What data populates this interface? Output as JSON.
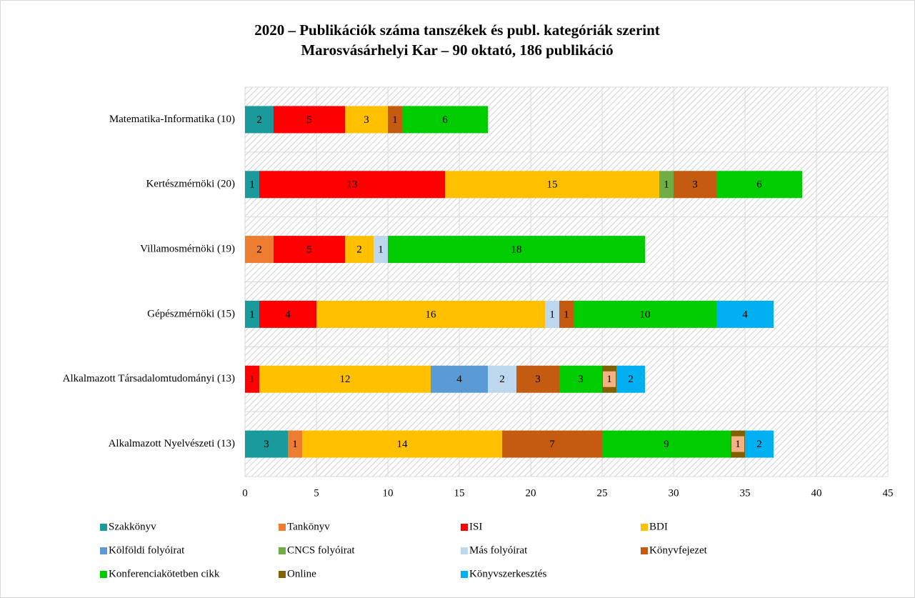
{
  "chart_data": {
    "type": "stacked_barh",
    "title": "2020 – Publikációk száma tanszékek és publ. kategóriák szerint",
    "subtitle": "Marosvásárhelyi Kar – 90 oktató, 186 publikáció",
    "categories": [
      "Matematika-Informatika (10)",
      "Kertészmérnöki (20)",
      "Villamosmérnöki (19)",
      "Gépészmérnöki (15)",
      "Alkalmazott Társadalomtudományi (13)",
      "Alkalmazott Nyelvészeti (13)"
    ],
    "series": [
      {
        "name": "Szakkönyv",
        "color": "#1a9a9a",
        "values": [
          2,
          1,
          null,
          1,
          null,
          3
        ]
      },
      {
        "name": "Tankönyv",
        "color": "#ed7d31",
        "values": [
          null,
          null,
          2,
          null,
          null,
          1
        ]
      },
      {
        "name": "ISI",
        "color": "#ff0000",
        "values": [
          5,
          13,
          5,
          4,
          1,
          null
        ]
      },
      {
        "name": "BDI",
        "color": "#ffc000",
        "values": [
          3,
          15,
          2,
          16,
          12,
          14
        ]
      },
      {
        "name": "Kölföldi folyóirat",
        "color": "#5b9bd5",
        "values": [
          null,
          null,
          null,
          null,
          4,
          null
        ]
      },
      {
        "name": "CNCS folyóirat",
        "color": "#70ad47",
        "values": [
          null,
          1,
          null,
          null,
          null,
          null
        ]
      },
      {
        "name": "Más folyóirat",
        "color": "#bdd7ee",
        "values": [
          null,
          null,
          1,
          1,
          2,
          null
        ]
      },
      {
        "name": "Könyvfejezet",
        "color": "#c55a11",
        "values": [
          1,
          3,
          null,
          1,
          3,
          7
        ]
      },
      {
        "name": "Konferenciakötetben cikk",
        "color": "#00cc00",
        "values": [
          6,
          6,
          18,
          10,
          3,
          9
        ]
      },
      {
        "name": "Online",
        "color": "#806000",
        "label_fill": "#f4b183",
        "values": [
          null,
          null,
          null,
          null,
          1,
          1
        ]
      },
      {
        "name": "Könyvszerkesztés",
        "color": "#00b0f0",
        "values": [
          null,
          null,
          null,
          4,
          2,
          2
        ]
      }
    ],
    "xlim": [
      0,
      45
    ],
    "xticks": [
      0,
      5,
      10,
      15,
      20,
      25,
      30,
      35,
      40,
      45
    ],
    "grid": true
  }
}
